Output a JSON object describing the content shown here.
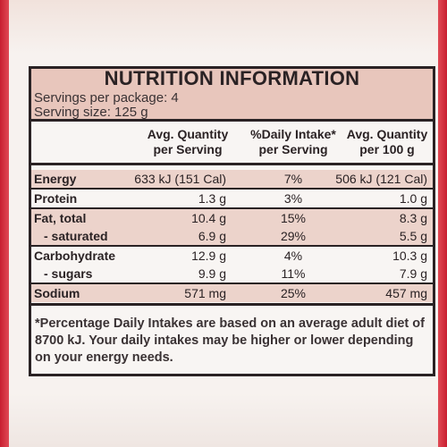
{
  "title": "NUTRITION INFORMATION",
  "servings_per_package": "Servings per package: 4",
  "serving_size": "Serving size: 125 g",
  "columns": {
    "avg_per_serving_line1": "Avg. Quantity",
    "avg_per_serving_line2": "per Serving",
    "di_line1": "%Daily Intake*",
    "di_line2": "per Serving",
    "avg_per_100g_line1": "Avg. Quantity",
    "avg_per_100g_line2": "per 100 g"
  },
  "rows": [
    {
      "name": "Energy",
      "per_serving": "633 kJ (151 Cal)",
      "daily_intake": "7%",
      "per_100g": "506 kJ (121 Cal)"
    },
    {
      "name": "Protein",
      "per_serving": "1.3 g",
      "daily_intake": "3%",
      "per_100g": "1.0 g"
    },
    {
      "name": "Fat, total",
      "per_serving": "10.4 g",
      "daily_intake": "15%",
      "per_100g": "8.3 g"
    },
    {
      "name": "- saturated",
      "per_serving": "6.9 g",
      "daily_intake": "29%",
      "per_100g": "5.5 g"
    },
    {
      "name": "Carbohydrate",
      "per_serving": "12.9 g",
      "daily_intake": "4%",
      "per_100g": "10.3 g"
    },
    {
      "name": "- sugars",
      "per_serving": "9.9 g",
      "daily_intake": "11%",
      "per_100g": "7.9 g"
    },
    {
      "name": "Sodium",
      "per_serving": "571 mg",
      "daily_intake": "25%",
      "per_100g": "457 mg"
    }
  ],
  "footnote": "*Percentage Daily Intakes are based on an average adult diet of 8700 kJ. Your daily intakes may be higher or lower depending on your energy needs.",
  "colors": {
    "accent_red": "#d9293b",
    "header_pink": "#e8c6bc",
    "row_shade": "#ecd3cb",
    "ink": "#2a2224"
  }
}
